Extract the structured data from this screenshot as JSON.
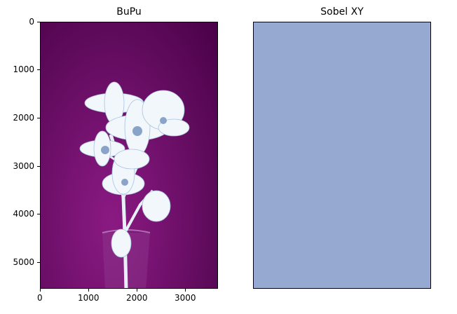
{
  "panels": [
    {
      "title": "BuPu",
      "y_ticks": [
        "0",
        "1000",
        "2000",
        "3000",
        "4000",
        "5000"
      ],
      "x_ticks": [
        "0",
        "1000",
        "2000",
        "3000"
      ]
    },
    {
      "title": "Sobel XY",
      "fill_color": "#95a9d1"
    }
  ],
  "colors": {
    "background_dark": "#4d004b",
    "background_mid": "#810f7c",
    "flower": "#f0f7fb",
    "flower_shade": "#9ebcda"
  }
}
